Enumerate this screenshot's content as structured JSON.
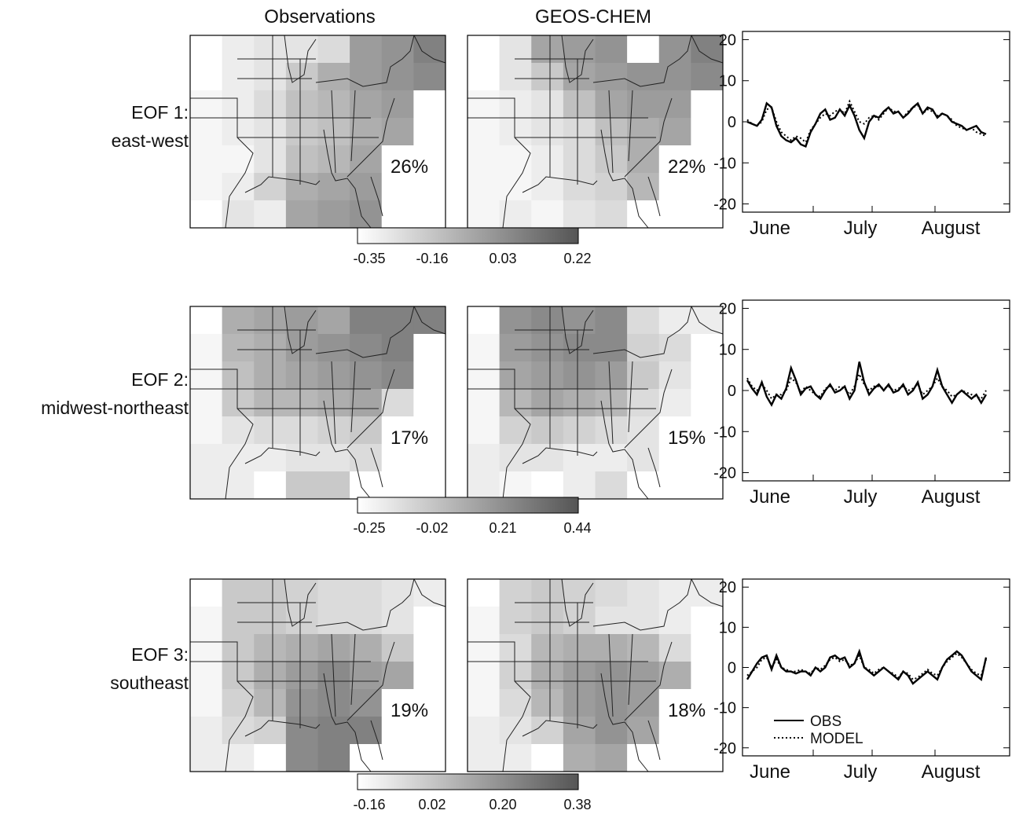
{
  "columns": [
    "Observations",
    "GEOS-CHEM"
  ],
  "panels": [
    {
      "row_label_1": "EOF 1:",
      "row_label_2": "east-west",
      "obs_pct": "26%",
      "model_pct": "22%",
      "colorbar_ticks": [
        "-0.35",
        "-0.16",
        "0.03",
        "0.22"
      ]
    },
    {
      "row_label_1": "EOF 2:",
      "row_label_2": "midwest-northeast",
      "obs_pct": "17%",
      "model_pct": "15%",
      "colorbar_ticks": [
        "-0.25",
        "-0.02",
        "0.21",
        "0.44"
      ]
    },
    {
      "row_label_1": "EOF 3:",
      "row_label_2": "southeast",
      "obs_pct": "19%",
      "model_pct": "18%",
      "colorbar_ticks": [
        "-0.16",
        "0.02",
        "0.20",
        "0.38"
      ]
    }
  ],
  "chart_data": [
    {
      "type": "line",
      "x_tick_labels": [
        "June",
        "July",
        "August"
      ],
      "ylim": [
        -22,
        22
      ],
      "y_ticks": [
        -20,
        -10,
        0,
        10,
        20
      ],
      "series": [
        {
          "values": [
            0,
            -0.5,
            -1,
            0.5,
            4.5,
            3.5,
            -1,
            -3.5,
            -4.5,
            -5,
            -4,
            -5.5,
            -6,
            -2.5,
            -0.5,
            2,
            3,
            0.5,
            1,
            3,
            1.5,
            4,
            1.5,
            -2,
            -4,
            0,
            1.5,
            1,
            2.5,
            3.5,
            2,
            2.5,
            1,
            2,
            3.5,
            4.5,
            2,
            3.5,
            3,
            1,
            2,
            1.5,
            0,
            -0.5,
            -1,
            -2,
            -1.5,
            -1,
            -2.5,
            -3
          ]
        },
        {
          "values": [
            0.5,
            -0.5,
            -1,
            0,
            3,
            3.5,
            0,
            -2.5,
            -3.5,
            -4.5,
            -3.5,
            -4,
            -5,
            -2,
            -0.5,
            1,
            2,
            1.5,
            2.5,
            3,
            2,
            5,
            2.5,
            0,
            -0.5,
            1,
            1.5,
            0.5,
            2,
            3.5,
            2.5,
            2.5,
            1,
            2.5,
            3.5,
            4,
            2,
            3,
            2.5,
            1.5,
            2,
            1.5,
            0.5,
            -1,
            -1.5,
            -2,
            -1.5,
            -2.5,
            -3,
            -3.5
          ]
        }
      ]
    },
    {
      "type": "line",
      "x_tick_labels": [
        "June",
        "July",
        "August"
      ],
      "ylim": [
        -22,
        22
      ],
      "y_ticks": [
        -20,
        -10,
        0,
        10,
        20
      ],
      "series": [
        {
          "values": [
            2.5,
            0.5,
            -1,
            2,
            -1.5,
            -3.5,
            -1,
            -2,
            0.5,
            5.5,
            2.5,
            -1,
            0.5,
            1,
            -1,
            -2,
            0,
            1.5,
            -0.5,
            0,
            1,
            -2,
            0,
            7,
            2,
            -1,
            0.5,
            1.5,
            0,
            1.5,
            -0.5,
            0,
            1.5,
            -1,
            0,
            2,
            -2,
            -1,
            1,
            5,
            1,
            -1,
            -3,
            -1,
            0,
            -1,
            -2,
            -1,
            -3,
            -1
          ]
        },
        {
          "values": [
            3,
            1,
            0,
            1.5,
            0,
            -2,
            -1,
            -1,
            0,
            3,
            2,
            -0.5,
            1,
            0,
            -1,
            -1.5,
            0.5,
            1,
            0,
            1,
            0.5,
            -1,
            1,
            4,
            1.5,
            0,
            1,
            1,
            0.5,
            1,
            0,
            0.5,
            1,
            0,
            0.5,
            1.5,
            -1,
            0,
            1,
            3,
            1,
            0,
            -1.5,
            -1,
            0,
            -0.5,
            -1,
            -1.5,
            -2,
            0
          ]
        }
      ]
    },
    {
      "type": "line",
      "x_tick_labels": [
        "June",
        "July",
        "August"
      ],
      "ylim": [
        -22,
        22
      ],
      "y_ticks": [
        -20,
        -10,
        0,
        10,
        20
      ],
      "legend": [
        {
          "label": "OBS",
          "style": "solid"
        },
        {
          "label": "MODEL",
          "style": "dotted"
        }
      ],
      "series": [
        {
          "values": [
            -3,
            -1,
            1,
            2.5,
            3,
            -0.5,
            3,
            0,
            -1,
            -1,
            -1.5,
            -1,
            -1,
            -2,
            0,
            -1,
            0,
            2.5,
            3,
            2,
            2.5,
            0,
            1,
            4,
            0,
            -1,
            -2,
            -1,
            0,
            -1,
            -2,
            -3,
            -1,
            -2,
            -4,
            -3,
            -2,
            -1,
            -2,
            -3,
            0,
            2,
            3,
            4,
            3,
            1,
            -1,
            -2,
            -3,
            2.5
          ]
        },
        {
          "values": [
            -2,
            -1,
            0,
            2,
            2.5,
            0,
            2,
            0,
            -0.5,
            -1,
            -1,
            -0.5,
            -1,
            -1.5,
            0,
            -0.5,
            0.5,
            2,
            2.5,
            1.5,
            2,
            0.5,
            1,
            3,
            0,
            -0.5,
            -1.5,
            -0.5,
            0,
            -1,
            -1.5,
            -2.5,
            -1,
            -1.5,
            -3,
            -2.5,
            -1.5,
            -0.5,
            -1.5,
            -2,
            0,
            1.5,
            2.5,
            3.5,
            2.5,
            1,
            -0.5,
            -1.5,
            -2,
            2
          ]
        }
      ]
    }
  ]
}
